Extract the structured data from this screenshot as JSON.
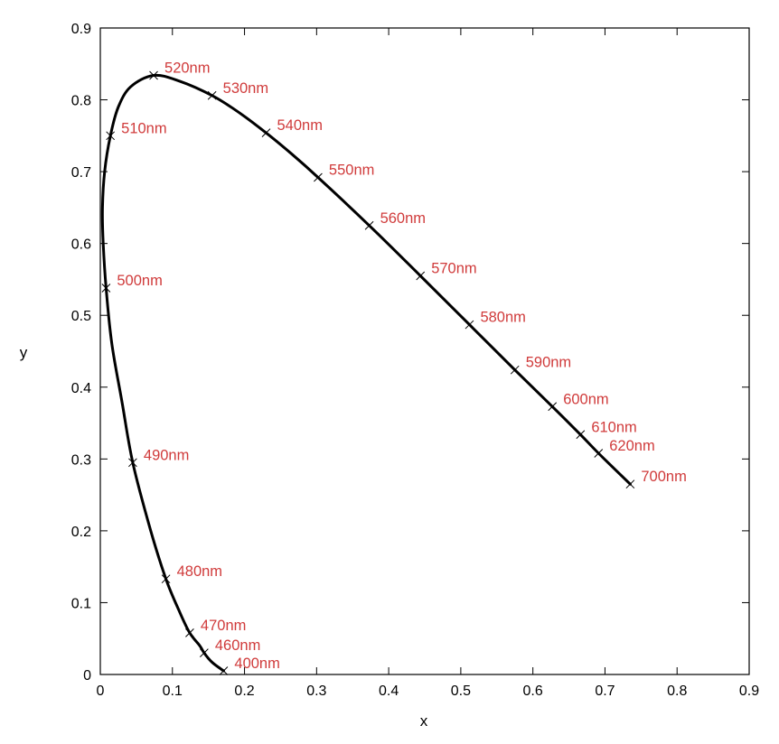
{
  "chart_data": {
    "type": "line",
    "title": "",
    "xlabel": "x",
    "ylabel": "y",
    "xlim": [
      0,
      0.9
    ],
    "ylim": [
      0,
      0.9
    ],
    "xticks": [
      "0",
      "0.1",
      "0.2",
      "0.3",
      "0.4",
      "0.5",
      "0.6",
      "0.7",
      "0.8",
      "0.9"
    ],
    "yticks": [
      "0",
      "0.1",
      "0.2",
      "0.3",
      "0.4",
      "0.5",
      "0.6",
      "0.7",
      "0.8",
      "0.9"
    ],
    "grid": false,
    "legend": "none",
    "line_color": "#000000",
    "label_color": "#d03b3b",
    "series": [
      {
        "values": [
          {
            "x": 0.171,
            "y": 0.005
          },
          {
            "x": 0.155,
            "y": 0.017
          },
          {
            "x": 0.144,
            "y": 0.03
          },
          {
            "x": 0.138,
            "y": 0.04
          },
          {
            "x": 0.124,
            "y": 0.058
          },
          {
            "x": 0.11,
            "y": 0.087
          },
          {
            "x": 0.091,
            "y": 0.133
          },
          {
            "x": 0.07,
            "y": 0.2
          },
          {
            "x": 0.045,
            "y": 0.295
          },
          {
            "x": 0.03,
            "y": 0.38
          },
          {
            "x": 0.016,
            "y": 0.46
          },
          {
            "x": 0.008,
            "y": 0.538
          },
          {
            "x": 0.004,
            "y": 0.6
          },
          {
            "x": 0.003,
            "y": 0.65
          },
          {
            "x": 0.006,
            "y": 0.7
          },
          {
            "x": 0.014,
            "y": 0.75
          },
          {
            "x": 0.025,
            "y": 0.79
          },
          {
            "x": 0.042,
            "y": 0.818
          },
          {
            "x": 0.074,
            "y": 0.834
          },
          {
            "x": 0.11,
            "y": 0.826
          },
          {
            "x": 0.155,
            "y": 0.806
          },
          {
            "x": 0.19,
            "y": 0.784
          },
          {
            "x": 0.23,
            "y": 0.754
          },
          {
            "x": 0.265,
            "y": 0.725
          },
          {
            "x": 0.302,
            "y": 0.692
          },
          {
            "x": 0.373,
            "y": 0.625
          },
          {
            "x": 0.444,
            "y": 0.555
          },
          {
            "x": 0.512,
            "y": 0.487
          },
          {
            "x": 0.575,
            "y": 0.424
          },
          {
            "x": 0.627,
            "y": 0.373
          },
          {
            "x": 0.666,
            "y": 0.334
          },
          {
            "x": 0.691,
            "y": 0.308
          },
          {
            "x": 0.735,
            "y": 0.265
          }
        ]
      }
    ],
    "points": [
      {
        "label": "400nm",
        "x": 0.171,
        "y": 0.005,
        "anchor": "right"
      },
      {
        "label": "460nm",
        "x": 0.144,
        "y": 0.03,
        "anchor": "right"
      },
      {
        "label": "470nm",
        "x": 0.124,
        "y": 0.058,
        "anchor": "right"
      },
      {
        "label": "480nm",
        "x": 0.091,
        "y": 0.133,
        "anchor": "right"
      },
      {
        "label": "490nm",
        "x": 0.045,
        "y": 0.295,
        "anchor": "right"
      },
      {
        "label": "500nm",
        "x": 0.008,
        "y": 0.538,
        "anchor": "right"
      },
      {
        "label": "510nm",
        "x": 0.014,
        "y": 0.75,
        "anchor": "right"
      },
      {
        "label": "520nm",
        "x": 0.074,
        "y": 0.834,
        "anchor": "right"
      },
      {
        "label": "530nm",
        "x": 0.155,
        "y": 0.806,
        "anchor": "right"
      },
      {
        "label": "540nm",
        "x": 0.23,
        "y": 0.754,
        "anchor": "right"
      },
      {
        "label": "550nm",
        "x": 0.302,
        "y": 0.692,
        "anchor": "right"
      },
      {
        "label": "560nm",
        "x": 0.373,
        "y": 0.625,
        "anchor": "right"
      },
      {
        "label": "570nm",
        "x": 0.444,
        "y": 0.555,
        "anchor": "right"
      },
      {
        "label": "580nm",
        "x": 0.512,
        "y": 0.487,
        "anchor": "right"
      },
      {
        "label": "590nm",
        "x": 0.575,
        "y": 0.424,
        "anchor": "right"
      },
      {
        "label": "600nm",
        "x": 0.627,
        "y": 0.373,
        "anchor": "right"
      },
      {
        "label": "610nm",
        "x": 0.666,
        "y": 0.334,
        "anchor": "right"
      },
      {
        "label": "620nm",
        "x": 0.691,
        "y": 0.308,
        "anchor": "right"
      },
      {
        "label": "700nm",
        "x": 0.735,
        "y": 0.265,
        "anchor": "right"
      }
    ]
  }
}
